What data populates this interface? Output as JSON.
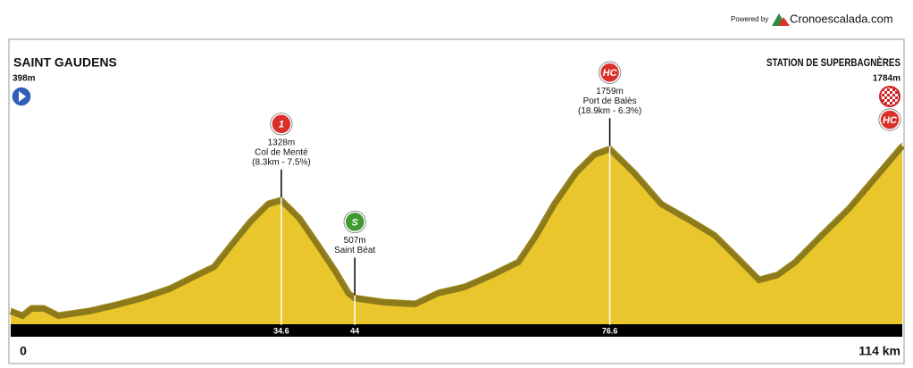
{
  "header": {
    "powered_by": "Powered by",
    "brand": "Cronoescalada.com"
  },
  "chart_data": {
    "type": "area",
    "x": [
      0,
      1.5,
      2.6,
      4.3,
      6.1,
      10,
      13.5,
      16.9,
      20.3,
      23.8,
      26,
      28.3,
      30.6,
      32.9,
      34.6,
      36.9,
      39.2,
      41.5,
      43.2,
      44,
      47.7,
      51.7,
      54.6,
      58,
      61.5,
      64.9,
      67.2,
      69.5,
      72.3,
      74.6,
      76.6,
      79.7,
      83.2,
      87.2,
      90,
      92.9,
      95.7,
      98,
      100.3,
      103.7,
      107.2,
      110.6,
      114
    ],
    "values": [
      398,
      360,
      420,
      420,
      360,
      398,
      450,
      510,
      585,
      700,
      770,
      960,
      1147,
      1297,
      1328,
      1180,
      960,
      735,
      548,
      507,
      473,
      458,
      548,
      600,
      700,
      810,
      1035,
      1297,
      1560,
      1710,
      1759,
      1560,
      1297,
      1147,
      1035,
      847,
      660,
      700,
      810,
      1035,
      1260,
      1521,
      1784
    ],
    "color": "#e8c62c",
    "xlim": [
      0,
      114
    ],
    "ylim": [
      200,
      2000
    ],
    "xticks": [
      0,
      34.6,
      44,
      76.6,
      {
        "value": 114,
        "label": "114 km"
      }
    ],
    "start": {
      "name": "SAINT GAUDENS",
      "elevation": "398m"
    },
    "finish": {
      "name": "STATION DE SUPERBAGNÈRES",
      "elevation": "1784m",
      "category": "HC"
    },
    "climbs": [
      {
        "x": 34.6,
        "y": 1328,
        "category": "1",
        "elevation": "1328m",
        "name": "Col de Menté",
        "detail": "(8.3km - 7.5%)",
        "color": "#d8312c"
      },
      {
        "x": 44,
        "y": 507,
        "category": "S",
        "elevation": "507m",
        "name": "Saint Béat",
        "color": "#3f9a2e"
      },
      {
        "x": 76.6,
        "y": 1759,
        "category": "HC",
        "elevation": "1759m",
        "name": "Port de Balès",
        "detail": "(18.9km - 6.3%)",
        "color": "#d8312c"
      }
    ]
  }
}
